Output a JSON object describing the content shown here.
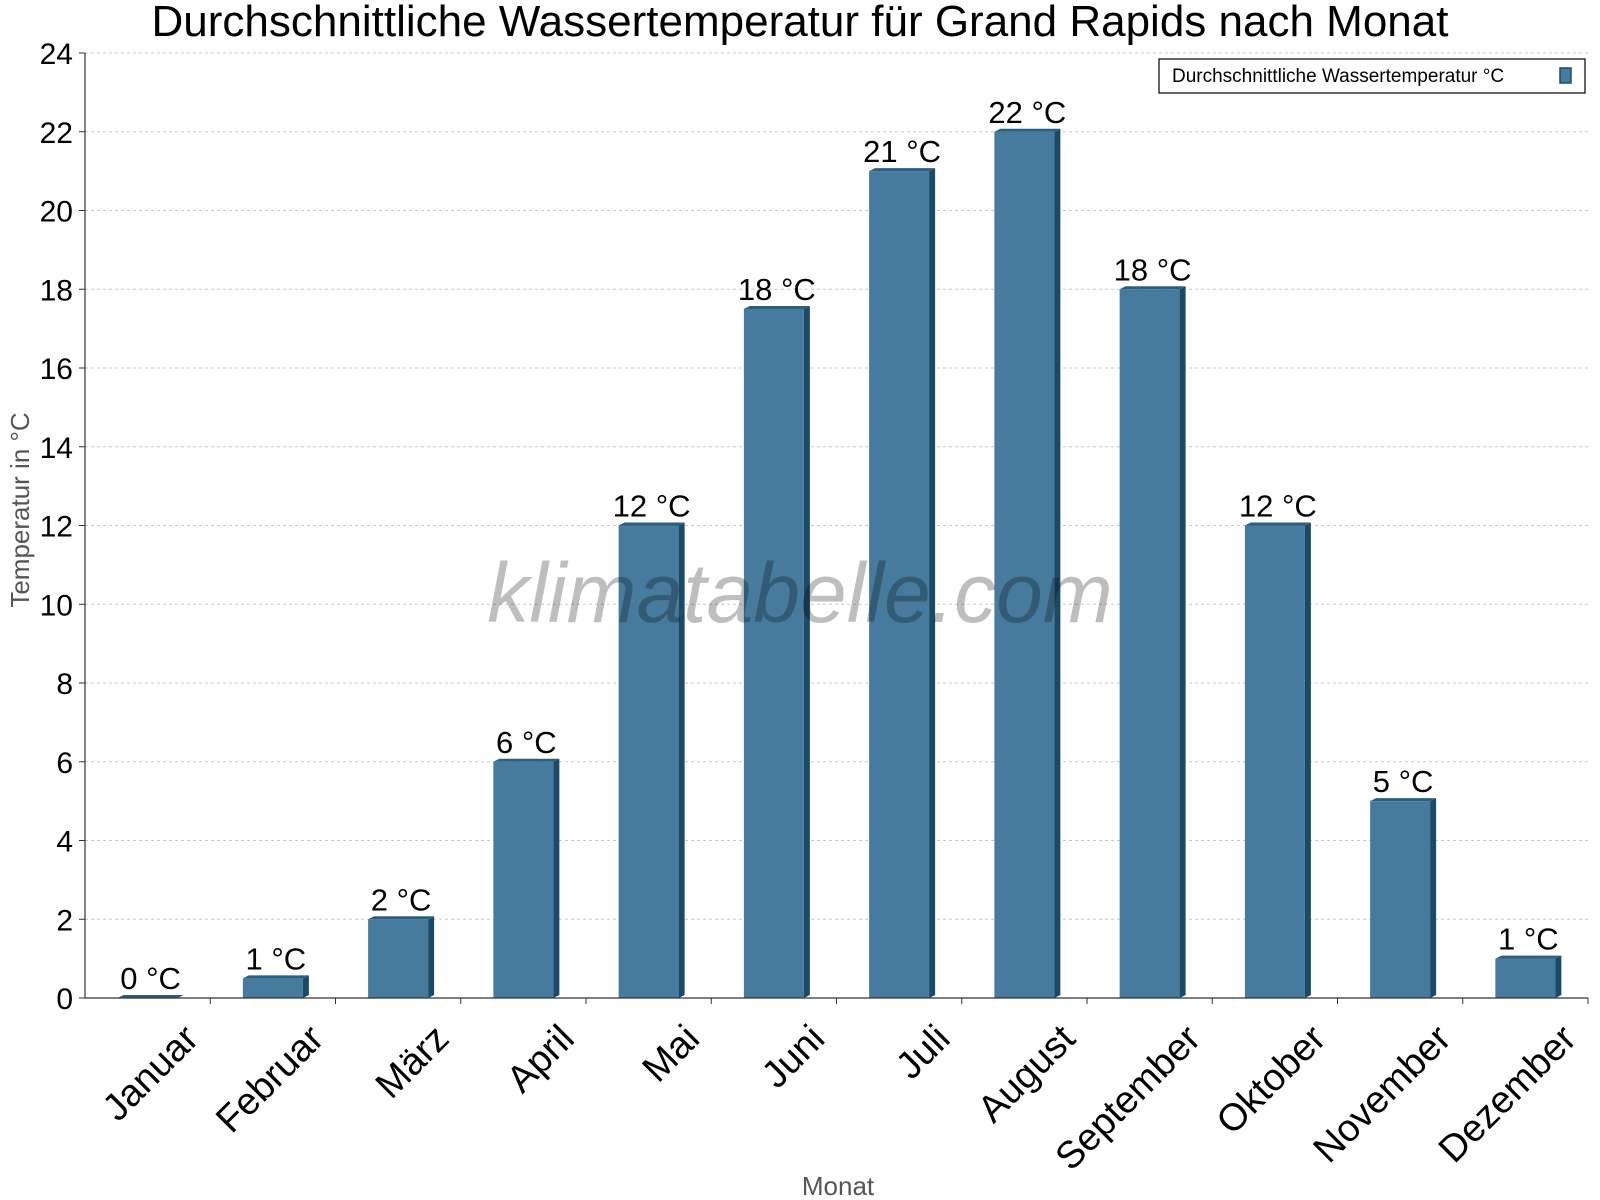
{
  "colors": {
    "bar_face": "#467b9e",
    "bar_side": "#1b4a69",
    "bar_top": "#2c5e80",
    "grid": "#c8c8c8",
    "axis": "#333333"
  },
  "watermark": "klimatabelle.com",
  "chart_data": {
    "type": "bar",
    "title": "Durchschnittliche Wassertemperatur für Grand Rapids nach Monat",
    "xlabel": "Monat",
    "ylabel": "Temperatur in °C",
    "ylim": [
      0,
      24
    ],
    "yticks": [
      0,
      2,
      4,
      6,
      8,
      10,
      12,
      14,
      16,
      18,
      20,
      22,
      24
    ],
    "grid": true,
    "legend_position": "top-right",
    "categories": [
      "Januar",
      "Februar",
      "März",
      "April",
      "Mai",
      "Juni",
      "Juli",
      "August",
      "September",
      "Oktober",
      "November",
      "Dezember"
    ],
    "series": [
      {
        "name": "Durchschnittliche Wassertemperatur °C",
        "values": [
          0,
          0.5,
          2,
          6,
          12,
          17.5,
          21,
          22,
          18,
          12,
          5,
          1
        ],
        "data_labels": [
          "0 °C",
          "1 °C",
          "2 °C",
          "6 °C",
          "12 °C",
          "18 °C",
          "21 °C",
          "22 °C",
          "18 °C",
          "12 °C",
          "5 °C",
          "1 °C"
        ]
      }
    ]
  }
}
